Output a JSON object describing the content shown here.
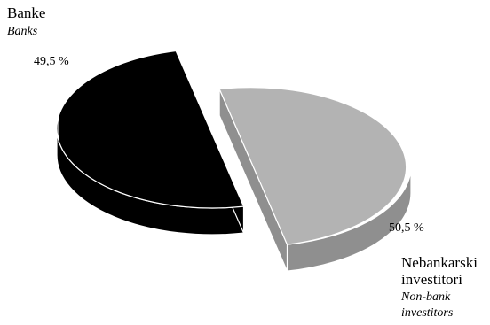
{
  "chart_data": {
    "type": "pie",
    "title": "",
    "slices": [
      {
        "label": "Banke",
        "label_en": "Banks",
        "value": 49.5,
        "value_label": "49,5 %",
        "color": "#000000"
      },
      {
        "label_lines": [
          "Nebankarski",
          "investitori"
        ],
        "label_en_lines": [
          "Non-bank",
          "investitors"
        ],
        "value": 50.5,
        "value_label": "50,5 %",
        "color": "#b3b3b3"
      }
    ],
    "style": "3d-exploded"
  }
}
